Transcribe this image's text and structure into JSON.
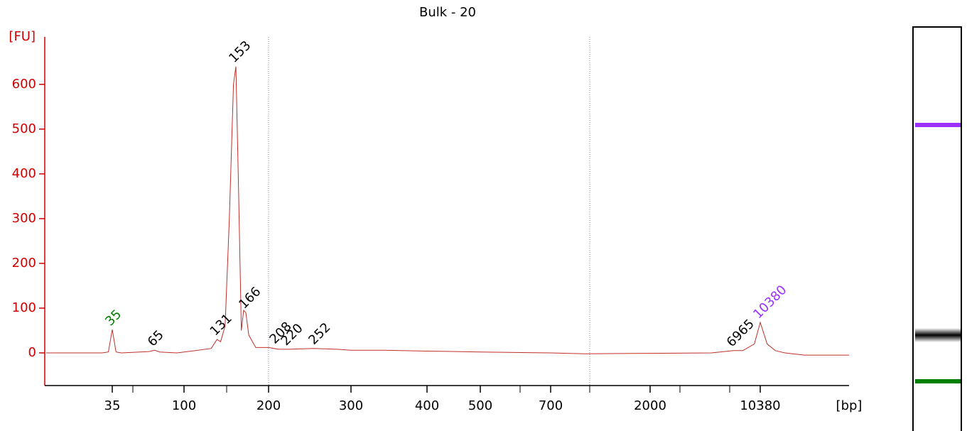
{
  "chart_data": {
    "type": "line",
    "title": "Bulk - 20",
    "y_label": "[FU]",
    "x_label": "[bp]",
    "ylim": [
      -73,
      706
    ],
    "yticks": [
      0,
      100,
      200,
      300,
      400,
      500,
      600
    ],
    "xlim": [
      13,
      39000
    ],
    "xticks": [
      35,
      100,
      200,
      300,
      400,
      500,
      700,
      2000,
      10380
    ],
    "axis_color": "#d00000",
    "series": [
      {
        "color": "#c0302a",
        "x": [
          13,
          30,
          33,
          35,
          37,
          40,
          60,
          65,
          70,
          90,
          110,
          125,
          131,
          135,
          140,
          145,
          150,
          153,
          156,
          160,
          163,
          166,
          170,
          180,
          200,
          210,
          220,
          250,
          280,
          300,
          340,
          400,
          500,
          700,
          1000,
          2000,
          5000,
          6965,
          8000,
          9500,
          10380,
          11500,
          13000,
          15000,
          20000,
          39000
        ],
        "values": [
          0,
          0,
          2,
          52,
          2,
          0,
          3,
          6,
          2,
          0,
          5,
          10,
          30,
          25,
          60,
          300,
          600,
          640,
          400,
          50,
          95,
          90,
          40,
          12,
          12,
          8,
          8,
          10,
          8,
          6,
          6,
          4,
          2,
          0,
          -2,
          -1,
          0,
          5,
          5,
          20,
          68,
          20,
          5,
          0,
          -5,
          -5
        ]
      }
    ],
    "peaks": [
      {
        "bp": 35,
        "fu": 52,
        "color": "#008000"
      },
      {
        "bp": 65,
        "fu": 6,
        "color": "#000000"
      },
      {
        "bp": 131,
        "fu": 30,
        "color": "#000000"
      },
      {
        "bp": 153,
        "fu": 640,
        "color": "#000000"
      },
      {
        "bp": 166,
        "fu": 90,
        "color": "#000000"
      },
      {
        "bp": 208,
        "fu": 12,
        "color": "#000000"
      },
      {
        "bp": 220,
        "fu": 8,
        "color": "#000000"
      },
      {
        "bp": 252,
        "fu": 10,
        "color": "#000000"
      },
      {
        "bp": 6965,
        "fu": 5,
        "color": "#000000"
      },
      {
        "bp": 10380,
        "fu": 68,
        "color": "#9b30ff"
      }
    ]
  }
}
